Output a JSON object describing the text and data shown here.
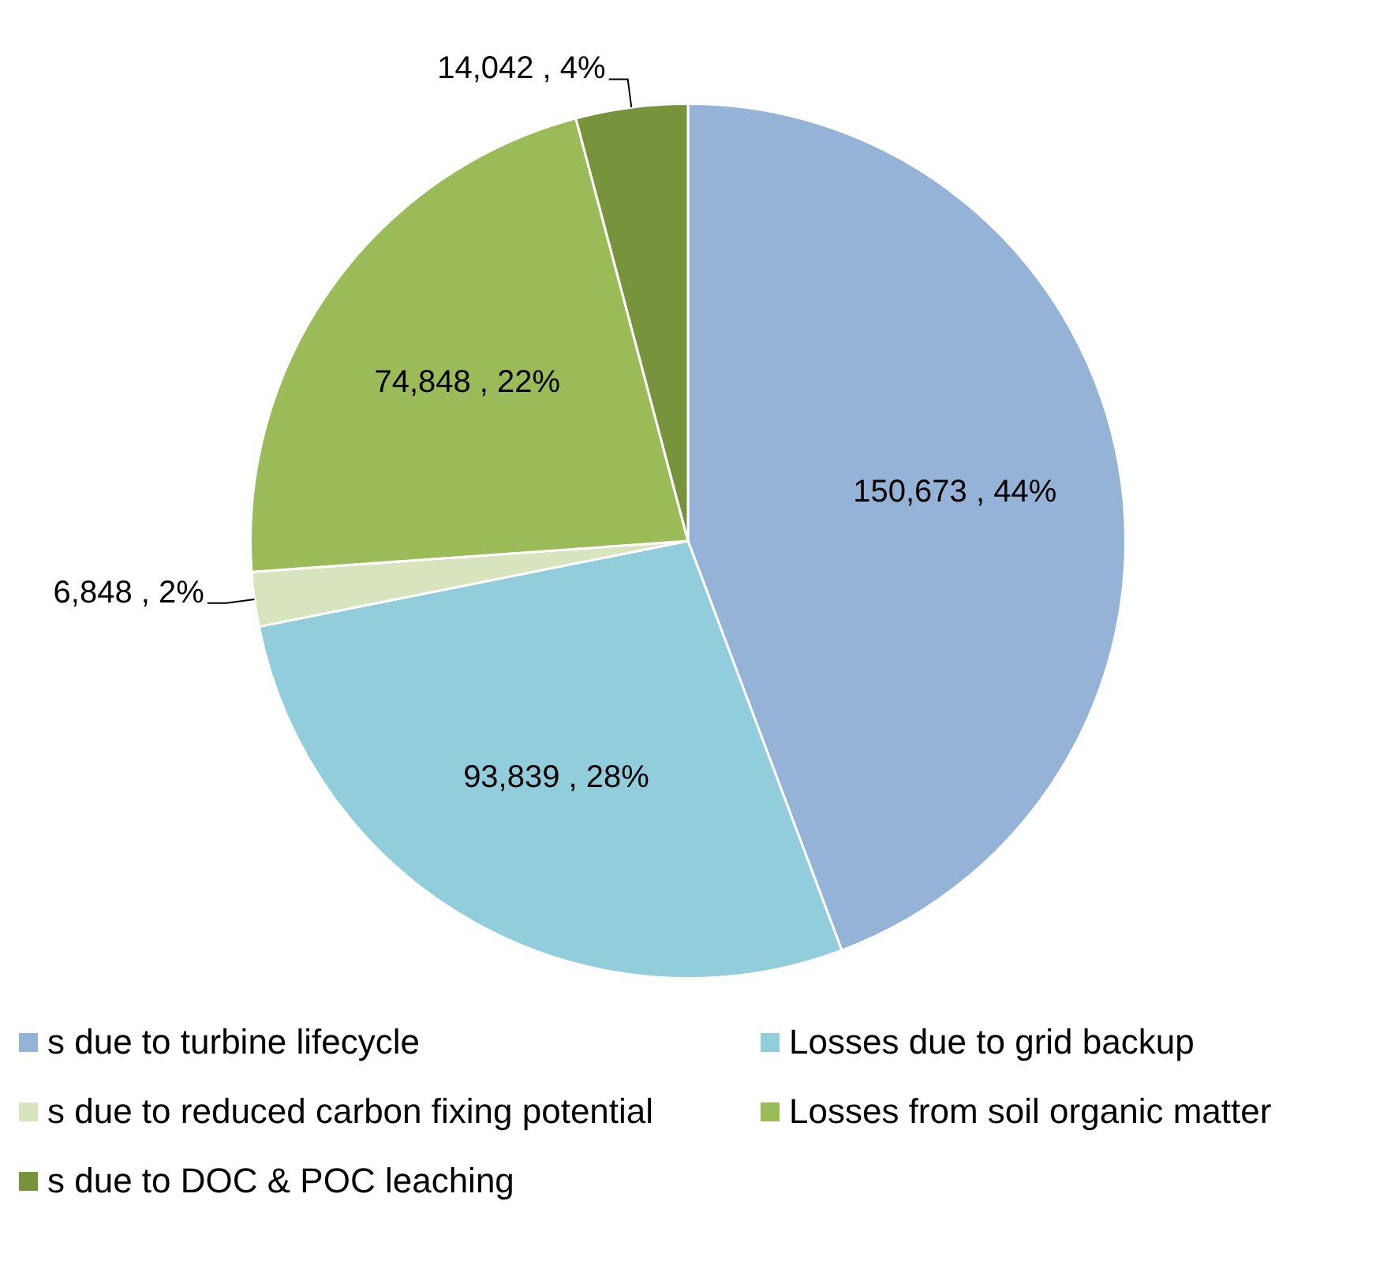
{
  "chart_data": {
    "type": "pie",
    "categories": [
      "s due to turbine lifecycle",
      "Losses due to grid backup",
      "s due to reduced carbon fixing potential",
      "Losses from soil organic matter",
      "s due to DOC & POC leaching"
    ],
    "values": [
      150673,
      93839,
      6848,
      74848,
      14042
    ],
    "colors": [
      "#95b3d7",
      "#92cddc",
      "#d7e4bd",
      "#9bbb59",
      "#77933c"
    ],
    "value_labels": [
      "150,673 , 44%",
      "93,839 , 28%",
      "6,848 , 2%",
      "74,848 , 22%",
      "14,042 , 4%"
    ],
    "legend": "bottom"
  }
}
